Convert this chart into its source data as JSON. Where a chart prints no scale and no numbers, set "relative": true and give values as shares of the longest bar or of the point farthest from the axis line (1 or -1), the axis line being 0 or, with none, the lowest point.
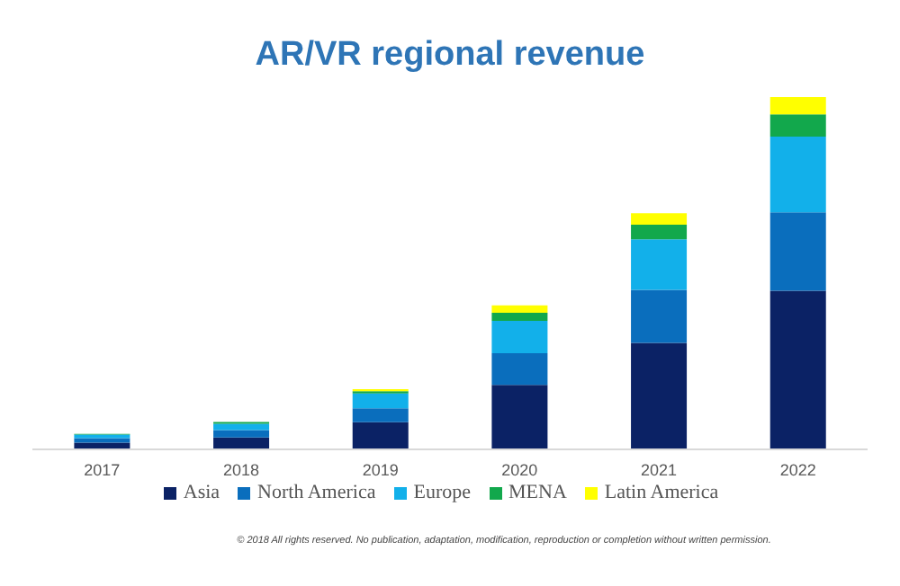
{
  "chart_data": {
    "type": "bar",
    "title": "AR/VR regional revenue",
    "categories": [
      "2017",
      "2018",
      "2019",
      "2020",
      "2021",
      "2022"
    ],
    "stacked": true,
    "relative": true,
    "legend": "bottom",
    "grid": false,
    "series": [
      {
        "name": "Asia",
        "color": "#0b2265",
        "values": [
          0.019,
          0.034,
          0.077,
          0.183,
          0.302,
          0.45
        ]
      },
      {
        "name": "North America",
        "color": "#0a6ebd",
        "values": [
          0.013,
          0.021,
          0.04,
          0.09,
          0.151,
          0.223
        ]
      },
      {
        "name": "Europe",
        "color": "#12b0ea",
        "values": [
          0.01,
          0.018,
          0.042,
          0.092,
          0.143,
          0.215
        ]
      },
      {
        "name": "MENA",
        "color": "#12a84c",
        "values": [
          0.002,
          0.005,
          0.006,
          0.023,
          0.042,
          0.063
        ]
      },
      {
        "name": "Latin America",
        "color": "#ffff00",
        "values": [
          0,
          0,
          0.006,
          0.021,
          0.032,
          0.049
        ]
      }
    ],
    "annotations": [
      "© 2018 All rights reserved. No publication, adaptation, modification, reproduction or completion without written permission."
    ]
  }
}
